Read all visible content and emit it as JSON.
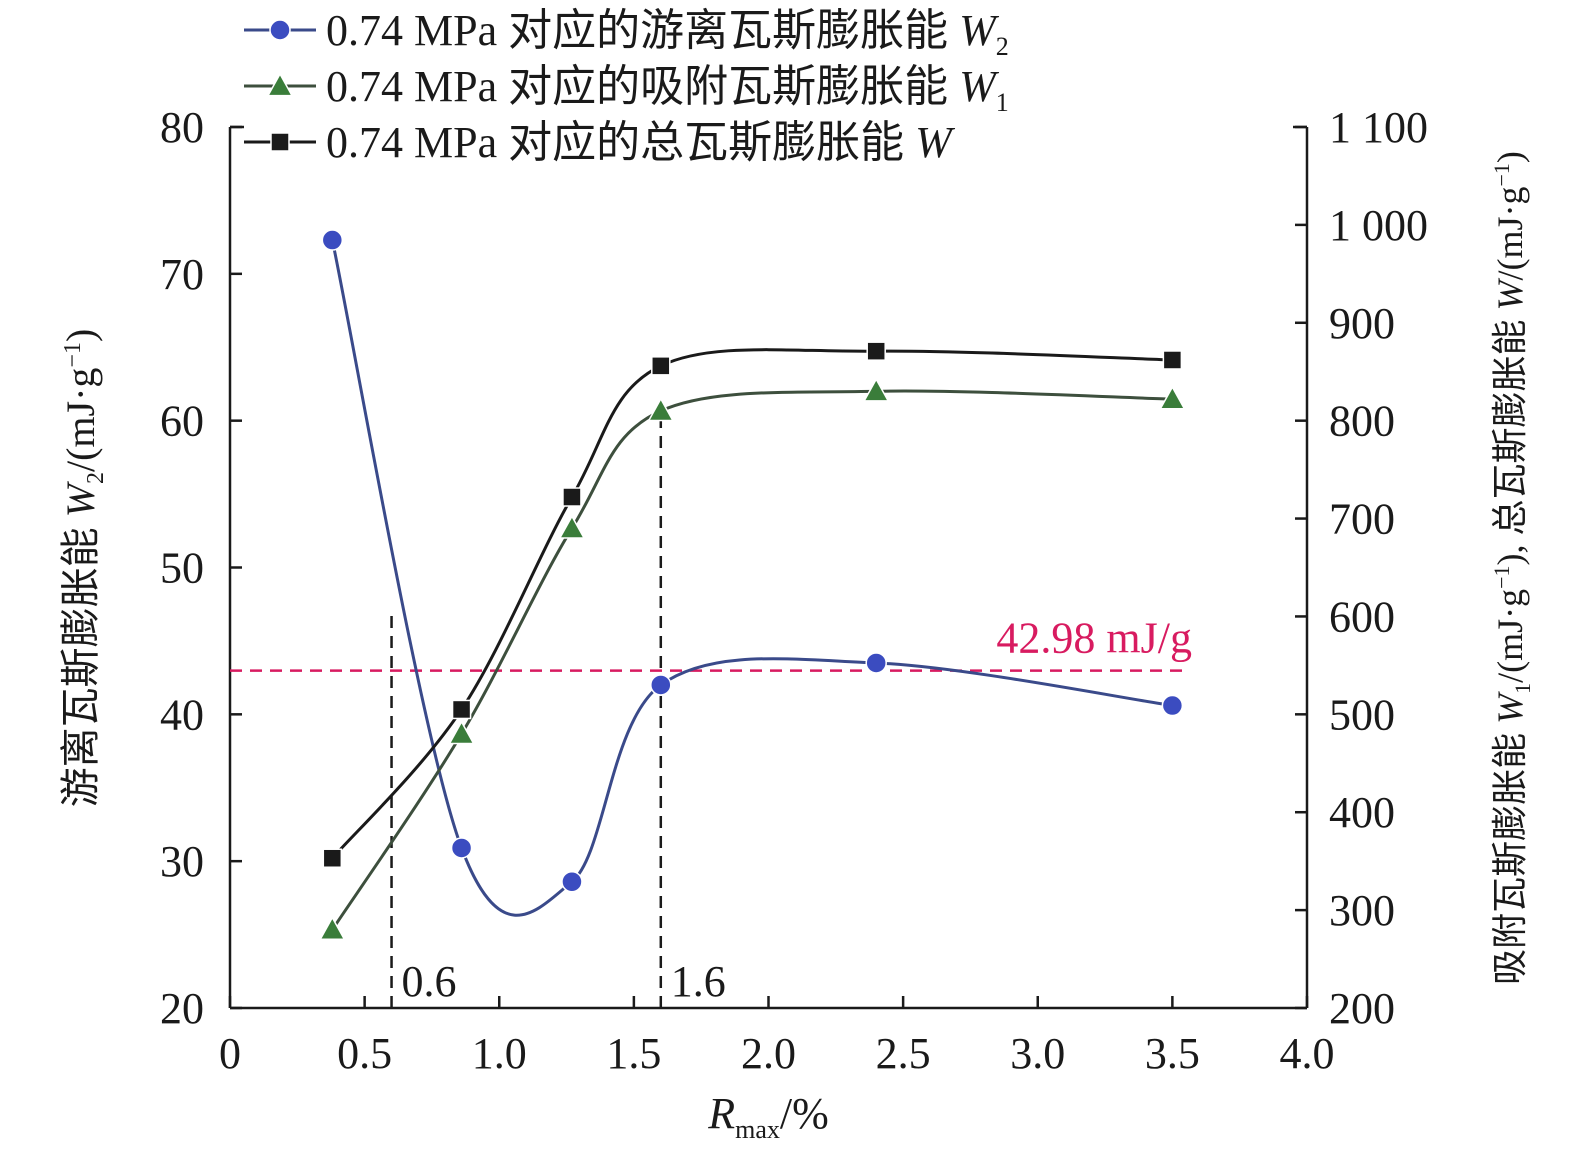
{
  "chart_data": {
    "type": "line",
    "x_axis": {
      "label_main": "R",
      "label_sub": "max",
      "label_tail": "/%",
      "range": [
        0,
        4.0
      ],
      "ticks": [
        0,
        0.5,
        1.0,
        1.5,
        2.0,
        2.5,
        3.0,
        3.5,
        4.0
      ],
      "tick_labels": [
        "0",
        "0.5",
        "1.0",
        "1.5",
        "2.0",
        "2.5",
        "3.0",
        "3.5",
        "4.0"
      ]
    },
    "y_left": {
      "label_prefix": "游离瓦斯膨胀能 ",
      "label_var": "W",
      "label_sub": "2",
      "label_unit": "/(mJ·g",
      "label_sup": "−1",
      "label_close": ")",
      "range": [
        20,
        80
      ],
      "ticks": [
        20,
        30,
        40,
        50,
        60,
        70,
        80
      ],
      "tick_labels": [
        "20",
        "30",
        "40",
        "50",
        "60",
        "70",
        "80"
      ]
    },
    "y_right": {
      "label_part1": "吸附瓦斯膨胀能 ",
      "label_var1": "W",
      "label_sub1": "1",
      "label_unit1": "/(mJ·g",
      "label_sup1": "−1",
      "label_mid": "), 总瓦斯膨胀能 ",
      "label_var2": "W",
      "label_unit2": "/(mJ·g",
      "label_sup2": "−1",
      "label_close": ")",
      "range": [
        200,
        1100
      ],
      "ticks": [
        200,
        300,
        400,
        500,
        600,
        700,
        800,
        900,
        1000,
        1100
      ],
      "tick_labels": [
        "200",
        "300",
        "400",
        "500",
        "600",
        "700",
        "800",
        "900",
        "1 000",
        "1 100"
      ]
    },
    "series": [
      {
        "name": "0.74 MPa 对应的游离瓦斯膨胀能 ",
        "name_var": "W",
        "name_sub": "2",
        "axis": "left",
        "marker": "circle",
        "color": "#3b4cc0",
        "x": [
          0.38,
          0.86,
          1.27,
          1.6,
          2.4,
          3.5
        ],
        "y": [
          72.3,
          30.9,
          28.6,
          42.0,
          43.5,
          40.6
        ]
      },
      {
        "name": "0.74 MPa 对应的吸附瓦斯膨胀能 ",
        "name_var": "W",
        "name_sub": "1",
        "axis": "right",
        "marker": "triangle",
        "color": "#3a7d3a",
        "x": [
          0.38,
          0.86,
          1.27,
          1.6,
          2.4,
          3.5
        ],
        "y": [
          280,
          480,
          690,
          810,
          830,
          822
        ]
      },
      {
        "name": "0.74 MPa 对应的总瓦斯膨胀能 ",
        "name_var": "W",
        "name_sub": "",
        "axis": "right",
        "marker": "square",
        "color": "#1a1a1a",
        "x": [
          0.38,
          0.86,
          1.27,
          1.6,
          2.4,
          3.5
        ],
        "y": [
          353,
          505,
          722,
          856,
          871,
          862
        ]
      }
    ],
    "reference_line": {
      "axis": "left",
      "y": 42.98,
      "label": "42.98 mJ/g",
      "color": "#d81b60"
    },
    "guide_lines": [
      {
        "x": 0.6,
        "label": "0.6"
      },
      {
        "x": 1.6,
        "label": "1.6"
      }
    ],
    "grid": false,
    "legend_position": "top-left"
  }
}
